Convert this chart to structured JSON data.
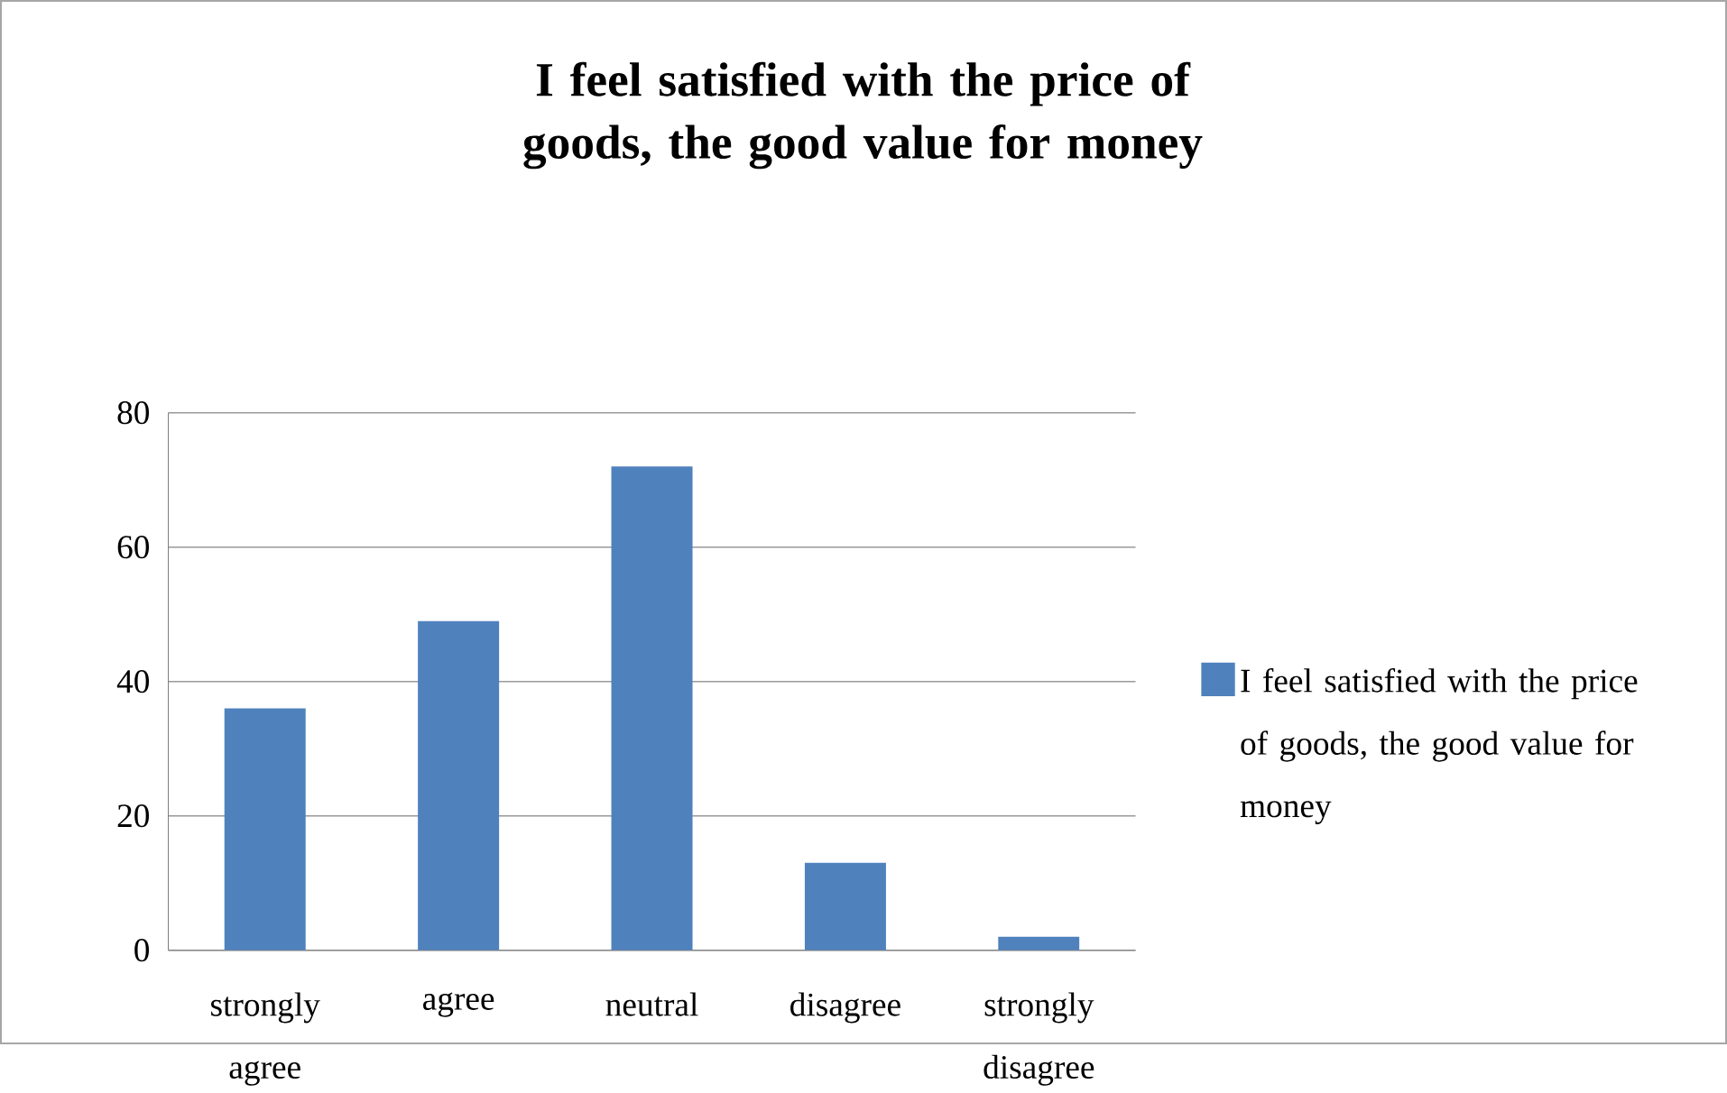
{
  "chart_data": {
    "type": "bar",
    "title": "I feel satisfied with the price of goods, the good value for money",
    "categories": [
      "strongly agree",
      "agree",
      "neutral",
      "disagree",
      "strongly disagree"
    ],
    "series": [
      {
        "name": "I feel satisfied with the price of goods, the good value for money",
        "color": "#4f81bd",
        "values": [
          36,
          49,
          72,
          13,
          2
        ]
      }
    ],
    "ylim": [
      0,
      80
    ],
    "yticks": [
      0,
      20,
      40,
      60,
      80
    ],
    "grid": "y",
    "legend": "right"
  }
}
